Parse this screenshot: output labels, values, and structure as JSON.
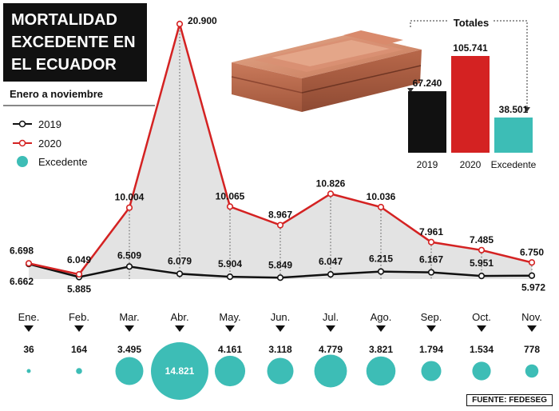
{
  "title_lines": [
    "MORTALIDAD",
    "EXCEDENTE EN",
    "EL  ECUADOR"
  ],
  "subtitle": "Enero a noviembre",
  "legend": [
    {
      "label": "2019",
      "color": "#111111",
      "marker": "circle-line"
    },
    {
      "label": "2020",
      "color": "#d42222",
      "marker": "circle-line"
    },
    {
      "label": "Excedente",
      "color": "#3dbdb6",
      "marker": "dot"
    }
  ],
  "source": "FUENTE: FEDESEG",
  "chart_data": [
    {
      "type": "line",
      "categories": [
        "Ene.",
        "Feb.",
        "Mar.",
        "Abr.",
        "May.",
        "Jun.",
        "Jul.",
        "Ago.",
        "Sep.",
        "Oct.",
        "Nov."
      ],
      "series": [
        {
          "name": "2019",
          "color": "#111111",
          "values": [
            6662,
            5885,
            6509,
            6079,
            5904,
            5849,
            6047,
            6215,
            6167,
            5951,
            5972
          ],
          "labels": [
            "6.662",
            "5.885",
            "6.509",
            "6.079",
            "5.904",
            "5.849",
            "6.047",
            "6.215",
            "6.167",
            "5.951",
            "5.972"
          ]
        },
        {
          "name": "2020",
          "color": "#d42222",
          "values": [
            6698,
            6049,
            10004,
            20900,
            10065,
            8967,
            10826,
            10036,
            7961,
            7485,
            6750
          ],
          "labels": [
            "6.698",
            "6.049",
            "10.004",
            "20.900",
            "10.065",
            "8.967",
            "10.826",
            "10.036",
            "7.961",
            "7.485",
            "6.750"
          ]
        }
      ],
      "excess": {
        "name": "Excedente",
        "color": "#3dbdb6",
        "values": [
          36,
          164,
          3495,
          14821,
          4161,
          3118,
          4779,
          3821,
          1794,
          1534,
          778
        ],
        "labels": [
          "36",
          "164",
          "3.495",
          "14.821",
          "4.161",
          "3.118",
          "4.779",
          "3.821",
          "1.794",
          "1.534",
          "778"
        ]
      },
      "area_fill": "#e3e3e3",
      "grid": false
    },
    {
      "type": "bar",
      "title": "Totales",
      "categories": [
        "2019",
        "2020",
        "Excedente"
      ],
      "values": [
        67240,
        105741,
        38501
      ],
      "labels": [
        "67.240",
        "105.741",
        "38.501"
      ],
      "colors": [
        "#111111",
        "#d42222",
        "#3dbdb6"
      ]
    }
  ]
}
